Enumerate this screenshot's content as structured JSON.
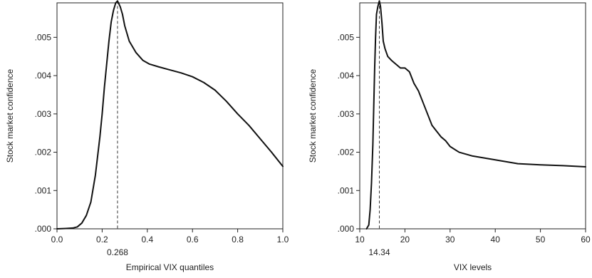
{
  "chart_data": [
    {
      "type": "line",
      "title": "",
      "xlabel": "Empirical VIX quantiles",
      "ylabel": "Stock market confidence",
      "xlim": [
        0.0,
        1.0
      ],
      "ylim": [
        0.0,
        0.0059
      ],
      "x_ticks": [
        0.0,
        0.2,
        0.4,
        0.6,
        0.8,
        1.0
      ],
      "x_tick_labels": [
        "0.0",
        "0.2",
        "0.4",
        "0.6",
        "0.8",
        "1.0"
      ],
      "y_ticks": [
        0.0,
        0.001,
        0.002,
        0.003,
        0.004,
        0.005
      ],
      "y_tick_labels": [
        ".000",
        ".001",
        ".002",
        ".003",
        ".004",
        ".005"
      ],
      "grid": false,
      "annotation": {
        "x": 0.268,
        "label": "0.268",
        "style": "dashed"
      },
      "series": [
        {
          "color": "#111111",
          "x": [
            0.0,
            0.04,
            0.07,
            0.09,
            0.11,
            0.13,
            0.15,
            0.17,
            0.19,
            0.2,
            0.21,
            0.22,
            0.23,
            0.24,
            0.25,
            0.26,
            0.268,
            0.28,
            0.29,
            0.3,
            0.32,
            0.35,
            0.38,
            0.41,
            0.45,
            0.5,
            0.55,
            0.6,
            0.65,
            0.7,
            0.75,
            0.8,
            0.85,
            0.9,
            0.95,
            1.0
          ],
          "y": [
            0.0,
            1e-05,
            2e-05,
            5e-05,
            0.00015,
            0.00035,
            0.0007,
            0.0014,
            0.0024,
            0.003,
            0.0037,
            0.0043,
            0.0049,
            0.0054,
            0.0057,
            0.0059,
            0.00595,
            0.0058,
            0.0056,
            0.0053,
            0.0049,
            0.0046,
            0.0044,
            0.0043,
            0.00423,
            0.00415,
            0.00407,
            0.00397,
            0.00382,
            0.00362,
            0.00333,
            0.003,
            0.0027,
            0.00235,
            0.002,
            0.00163
          ]
        }
      ]
    },
    {
      "type": "line",
      "title": "",
      "xlabel": "VIX levels",
      "ylabel": "Stock market confidence",
      "xlim": [
        10,
        60
      ],
      "ylim": [
        0.0,
        0.0059
      ],
      "x_ticks": [
        10,
        20,
        30,
        40,
        50,
        60
      ],
      "x_tick_labels": [
        "10",
        "20",
        "30",
        "40",
        "50",
        "60"
      ],
      "y_ticks": [
        0.0,
        0.001,
        0.002,
        0.003,
        0.004,
        0.005
      ],
      "y_tick_labels": [
        ".000",
        ".001",
        ".002",
        ".003",
        ".004",
        ".005"
      ],
      "grid": false,
      "annotation": {
        "x": 14.34,
        "label": "14.34",
        "style": "dashed"
      },
      "series": [
        {
          "color": "#111111",
          "x": [
            11.5,
            12.0,
            12.3,
            12.6,
            12.9,
            13.1,
            13.3,
            13.5,
            13.7,
            14.0,
            14.34,
            14.6,
            14.9,
            15.2,
            15.6,
            16.2,
            17.0,
            18.0,
            19.0,
            20.0,
            21.0,
            22.0,
            23.0,
            24.0,
            25.0,
            26.0,
            27.0,
            28.0,
            29.0,
            30.0,
            32.0,
            35.0,
            40.0,
            45.0,
            50.0,
            55.0,
            60.0
          ],
          "y": [
            0.0,
            0.0001,
            0.0005,
            0.0012,
            0.0022,
            0.0032,
            0.0042,
            0.005,
            0.0056,
            0.0058,
            0.00595,
            0.0058,
            0.0054,
            0.0049,
            0.0047,
            0.0045,
            0.0044,
            0.0043,
            0.0042,
            0.0042,
            0.0041,
            0.0038,
            0.0036,
            0.0033,
            0.003,
            0.0027,
            0.00255,
            0.0024,
            0.0023,
            0.00215,
            0.002,
            0.0019,
            0.0018,
            0.0017,
            0.00167,
            0.00165,
            0.00162
          ]
        }
      ]
    }
  ]
}
